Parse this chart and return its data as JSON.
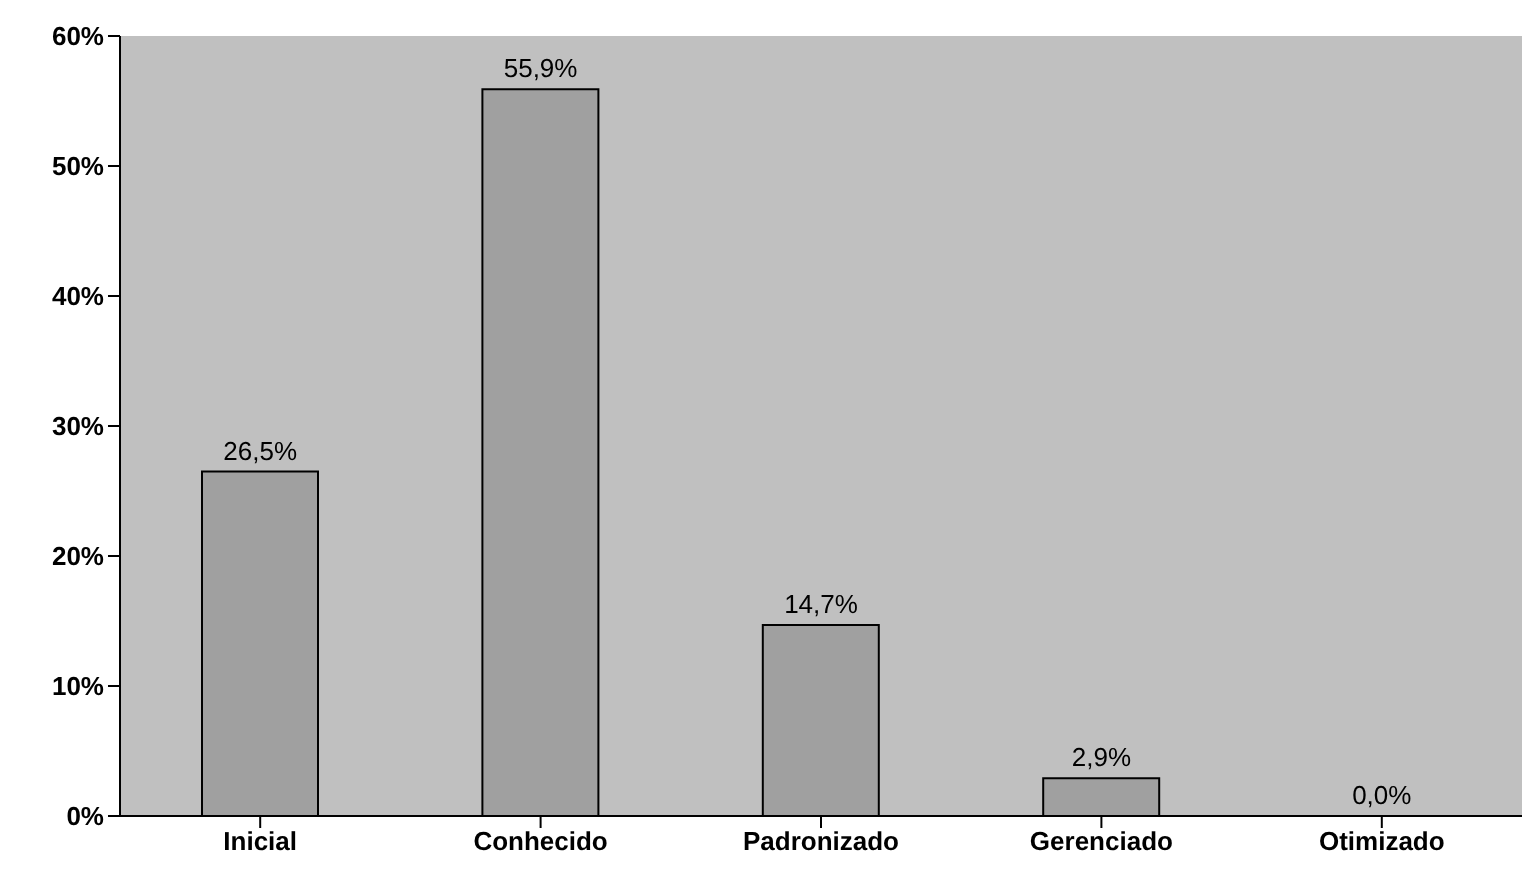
{
  "chart_data": {
    "type": "bar",
    "categories": [
      "Inicial",
      "Conhecido",
      "Padronizado",
      "Gerenciado",
      "Otimizado"
    ],
    "values": [
      26.5,
      55.9,
      14.7,
      2.9,
      0.0
    ],
    "value_labels": [
      "26,5%",
      "55,9%",
      "14,7%",
      "2,9%",
      "0,0%"
    ],
    "color": "#a0a0a0",
    "ylim": [
      0,
      60
    ],
    "yticks": [
      {
        "value": 0,
        "label": "0%"
      },
      {
        "value": 10,
        "label": "10%"
      },
      {
        "value": 20,
        "label": "20%"
      },
      {
        "value": 30,
        "label": "30%"
      },
      {
        "value": 40,
        "label": "40%"
      },
      {
        "value": 50,
        "label": "50%"
      },
      {
        "value": 60,
        "label": "60%"
      }
    ],
    "grid": false
  }
}
